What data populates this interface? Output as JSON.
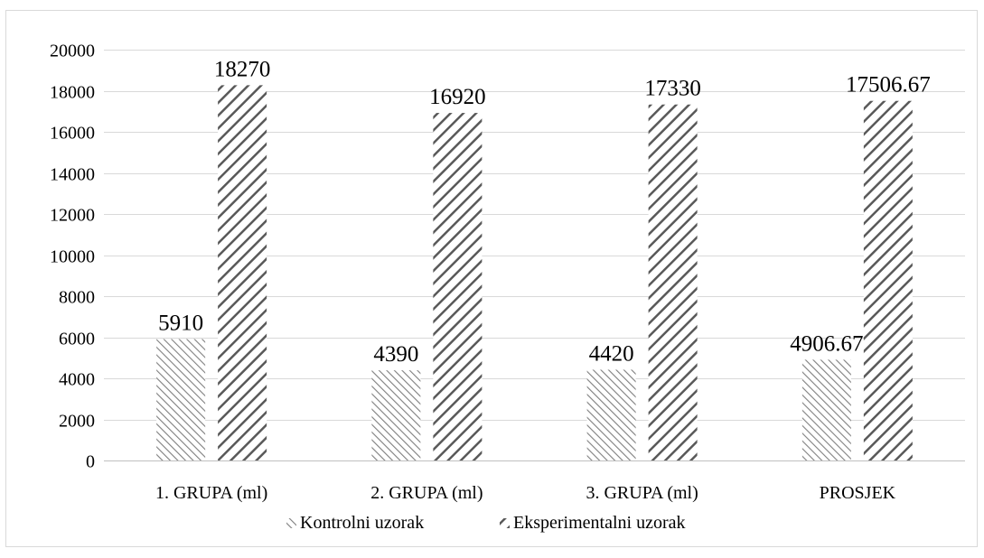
{
  "chart_data": {
    "type": "bar",
    "categories": [
      "1. GRUPA (ml)",
      "2. GRUPA (ml)",
      "3. GRUPA (ml)",
      "PROSJEK"
    ],
    "series": [
      {
        "name": "Kontrolni uzorak",
        "values": [
          5910,
          4390,
          4420,
          4906.67
        ],
        "labels": [
          "5910",
          "4390",
          "4420",
          "4906.67"
        ]
      },
      {
        "name": "Eksperimentalni uzorak",
        "values": [
          18270,
          16920,
          17330,
          17506.67
        ],
        "labels": [
          "18270",
          "16920",
          "17330",
          "17506.67"
        ]
      }
    ],
    "yticks": [
      "0",
      "2000",
      "4000",
      "6000",
      "8000",
      "10000",
      "12000",
      "14000",
      "16000",
      "18000",
      "20000"
    ],
    "ylim": [
      0,
      20000
    ],
    "grid": true,
    "legend": "bottom",
    "title": "",
    "xlabel": "",
    "ylabel": ""
  },
  "colors": {
    "grid": "#d9d9d9",
    "axis": "#bfbfbf",
    "hatch": "#595959",
    "frame": "#d9d9d9"
  }
}
